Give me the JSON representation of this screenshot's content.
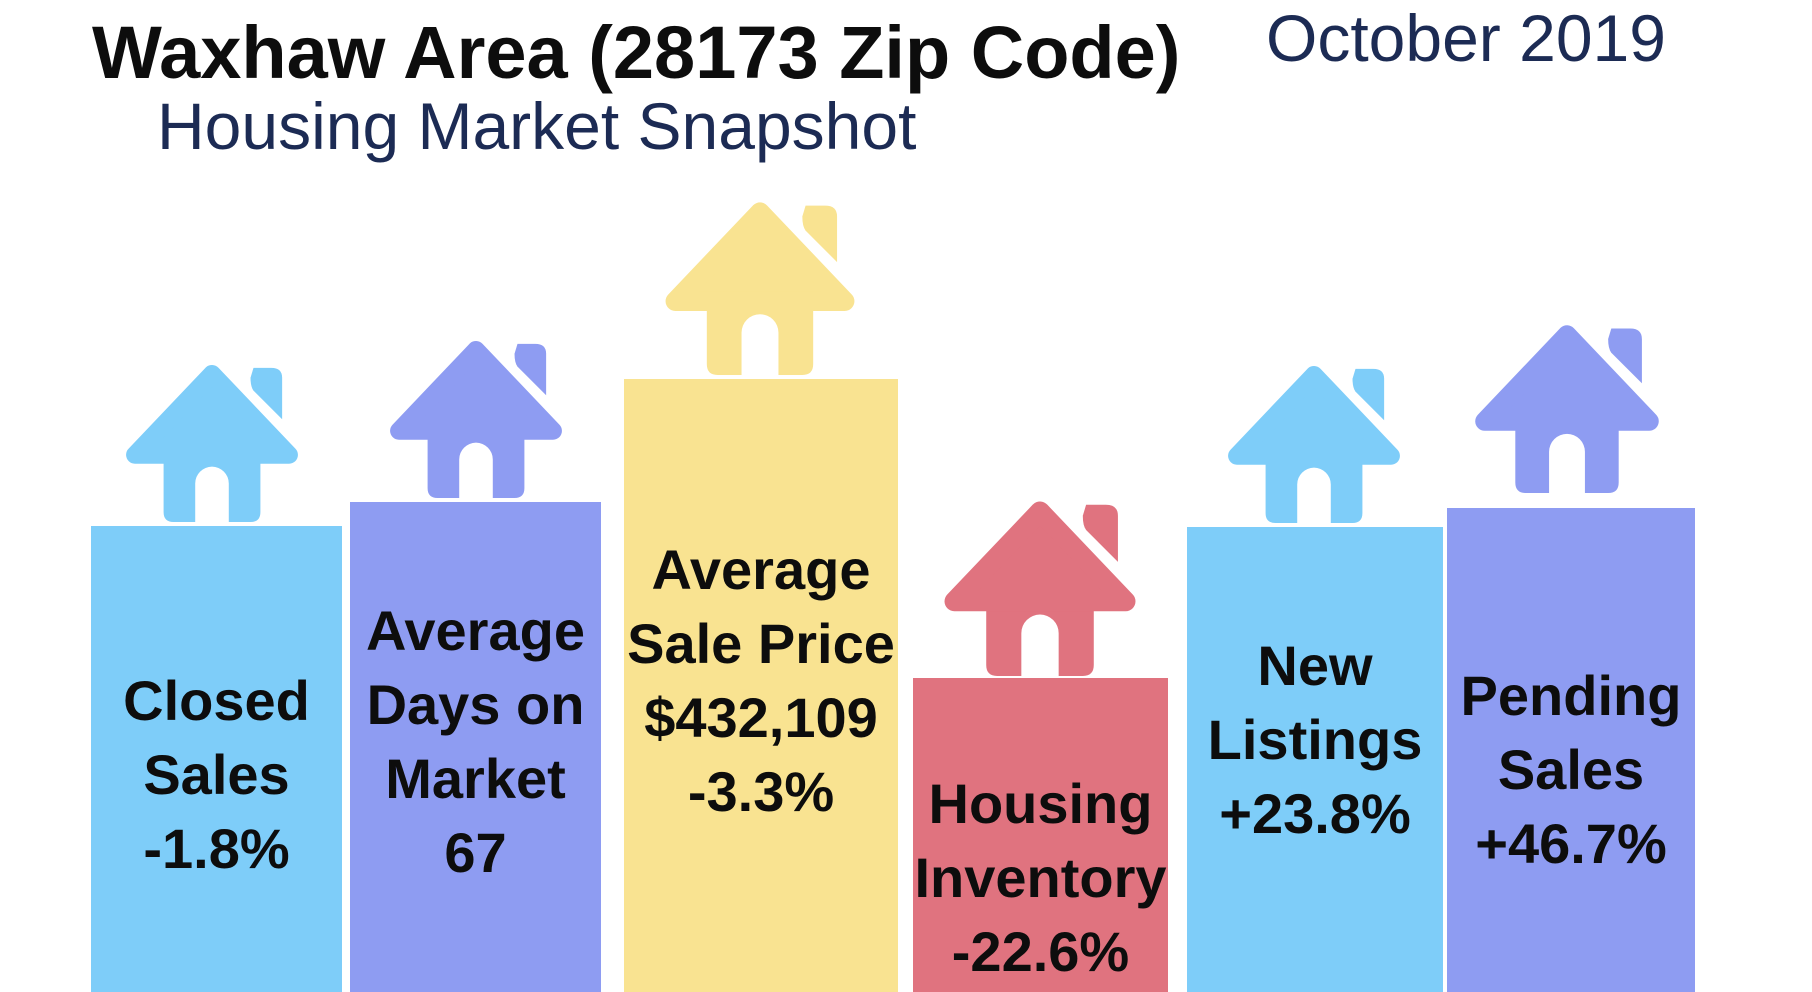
{
  "header": {
    "title_line1": "Waxhaw Area (28173 Zip Code)",
    "title_line2": "Housing Market Snapshot",
    "date": "October 2019"
  },
  "colors": {
    "light_blue": "#7ecdf9",
    "periwinkle": "#8e9cf2",
    "yellow": "#f9e391",
    "salmon": "#e0737f",
    "navy_title": "#1c2b54",
    "label_text": "#0d0d0d",
    "background": "#ffffff"
  },
  "bars": [
    {
      "id": "closed-sales",
      "icon": "house-icon",
      "color": "#7ecdf9",
      "lines": [
        "Closed",
        "Sales",
        "-1.8%"
      ]
    },
    {
      "id": "avg-days-on-market",
      "icon": "house-icon",
      "color": "#8e9cf2",
      "lines": [
        "Average",
        "Days on",
        "Market",
        "67"
      ]
    },
    {
      "id": "avg-sale-price",
      "icon": "house-icon",
      "color": "#f9e391",
      "lines": [
        "Average",
        "Sale Price",
        "$432,109",
        "-3.3%"
      ]
    },
    {
      "id": "housing-inventory",
      "icon": "house-icon",
      "color": "#e0737f",
      "lines": [
        "Housing",
        "Inventory",
        "-22.6%"
      ]
    },
    {
      "id": "new-listings",
      "icon": "house-icon",
      "color": "#7ecdf9",
      "lines": [
        "New",
        "Listings",
        "+23.8%"
      ]
    },
    {
      "id": "pending-sales",
      "icon": "house-icon",
      "color": "#8e9cf2",
      "lines": [
        "Pending",
        "Sales",
        "+46.7%"
      ]
    }
  ],
  "chart_data": {
    "type": "bar",
    "title": "Waxhaw Area (28173 Zip Code) Housing Market Snapshot",
    "period": "October 2019",
    "categories": [
      "Closed Sales",
      "Average Days on Market",
      "Average Sale Price",
      "Housing Inventory",
      "New Listings",
      "Pending Sales"
    ],
    "values_display": [
      "-1.8%",
      "67",
      "$432,109 -3.3%",
      "-22.6%",
      "+23.8%",
      "+46.7%"
    ],
    "percent_change": [
      -1.8,
      null,
      -3.3,
      -22.6,
      23.8,
      46.7
    ],
    "average_days_on_market": 67,
    "average_sale_price_usd": 432109,
    "series": [
      {
        "name": "decorative-bar-height-px",
        "values": [
          466,
          490,
          613,
          314,
          465,
          484
        ]
      }
    ],
    "legend_position": "none",
    "grid": false,
    "axes_shown": false
  }
}
